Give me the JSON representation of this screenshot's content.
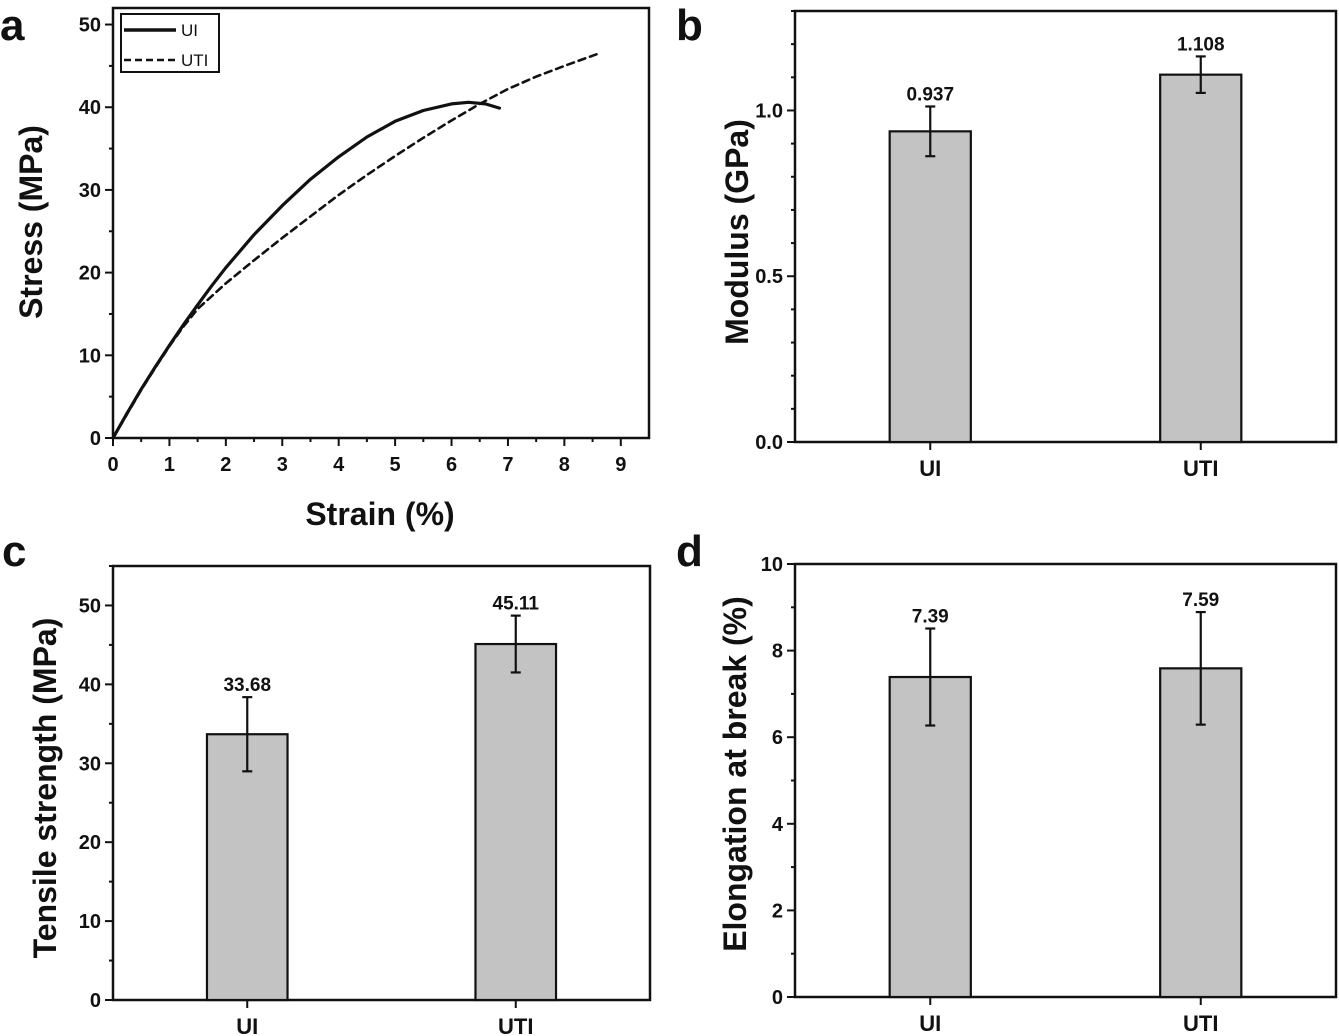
{
  "figure": {
    "panels": [
      "a",
      "b",
      "c",
      "d"
    ]
  },
  "colors": {
    "bar_fill": "#c3c3c3",
    "stroke": "#111111"
  },
  "chart_data": [
    {
      "id": "a",
      "type": "line",
      "panel_label": "a",
      "title": "",
      "xlabel": "Strain (%)",
      "ylabel": "Stress (MPa)",
      "xlim": [
        0,
        9.5
      ],
      "ylim": [
        0,
        52
      ],
      "xticks": [
        0,
        1,
        2,
        3,
        4,
        5,
        6,
        7,
        8,
        9
      ],
      "yticks": [
        0,
        10,
        20,
        30,
        40,
        50
      ],
      "grid": false,
      "legend": {
        "placement": "top-left",
        "entries": [
          "UI",
          "UTI"
        ]
      },
      "series": [
        {
          "name": "UI",
          "style": "solid",
          "x": [
            0,
            0.25,
            0.5,
            0.75,
            1.0,
            1.25,
            1.5,
            1.75,
            2.0,
            2.5,
            3.0,
            3.5,
            4.0,
            4.5,
            5.0,
            5.5,
            6.0,
            6.3,
            6.6,
            6.85
          ],
          "y": [
            0,
            3.0,
            5.9,
            8.6,
            11.2,
            13.7,
            16.1,
            18.4,
            20.6,
            24.6,
            28.1,
            31.3,
            34.0,
            36.4,
            38.3,
            39.6,
            40.4,
            40.6,
            40.4,
            39.9
          ]
        },
        {
          "name": "UTI",
          "style": "dashed",
          "x": [
            0,
            0.25,
            0.5,
            0.75,
            1.0,
            1.25,
            1.5,
            2.0,
            2.5,
            3.0,
            3.5,
            4.0,
            4.5,
            5.0,
            5.5,
            6.0,
            6.5,
            7.0,
            7.5,
            8.0,
            8.65
          ],
          "y": [
            0,
            2.9,
            5.8,
            8.5,
            11.1,
            13.5,
            15.6,
            18.7,
            21.5,
            24.2,
            26.8,
            29.4,
            31.8,
            34.1,
            36.3,
            38.4,
            40.4,
            42.2,
            43.7,
            45.0,
            46.6
          ]
        }
      ]
    },
    {
      "id": "b",
      "type": "bar",
      "panel_label": "b",
      "title": "",
      "xlabel": "",
      "ylabel": "Modulus (GPa)",
      "categories": [
        "UI",
        "UTI"
      ],
      "values": [
        0.937,
        1.108
      ],
      "errors": [
        0.075,
        0.055
      ],
      "value_labels": [
        "0.937",
        "1.108"
      ],
      "ylim": [
        0,
        1.3
      ],
      "yticks": [
        "0.0",
        "0.5",
        "1.0"
      ],
      "ytick_values": [
        0,
        0.5,
        1.0
      ],
      "minor_step": 0.1,
      "grid": false
    },
    {
      "id": "c",
      "type": "bar",
      "panel_label": "c",
      "title": "",
      "xlabel": "",
      "ylabel": "Tensile strength (MPa)",
      "categories": [
        "UI",
        "UTI"
      ],
      "values": [
        33.68,
        45.11
      ],
      "errors": [
        4.7,
        3.6
      ],
      "value_labels": [
        "33.68",
        "45.11"
      ],
      "ylim": [
        0,
        55
      ],
      "yticks": [
        "0",
        "10",
        "20",
        "30",
        "40",
        "50"
      ],
      "ytick_values": [
        0,
        10,
        20,
        30,
        40,
        50
      ],
      "minor_step": 5,
      "grid": false
    },
    {
      "id": "d",
      "type": "bar",
      "panel_label": "d",
      "title": "",
      "xlabel": "",
      "ylabel": "Elongation at break (%)",
      "categories": [
        "UI",
        "UTI"
      ],
      "values": [
        7.39,
        7.59
      ],
      "errors": [
        1.12,
        1.3
      ],
      "value_labels": [
        "7.39",
        "7.59"
      ],
      "ylim": [
        0,
        10
      ],
      "yticks": [
        "0",
        "2",
        "4",
        "6",
        "8",
        "10"
      ],
      "ytick_values": [
        0,
        2,
        4,
        6,
        8,
        10
      ],
      "minor_step": 1,
      "grid": false
    }
  ]
}
